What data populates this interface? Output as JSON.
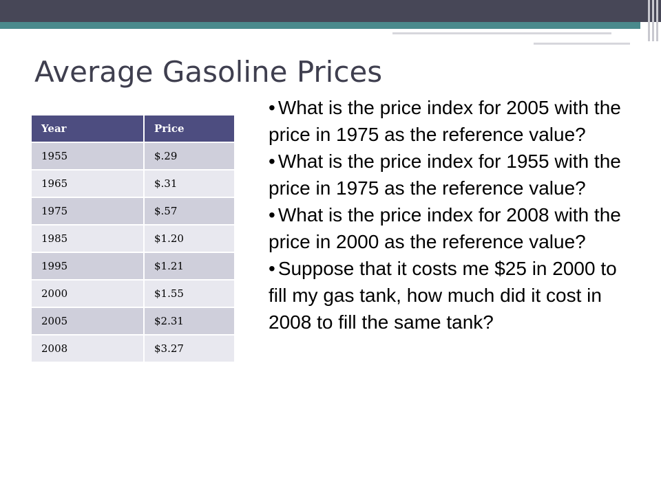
{
  "slide": {
    "title": "Average Gasoline Prices"
  },
  "table": {
    "headers": [
      "Year",
      "Price"
    ],
    "rows": [
      [
        "1955",
        "$.29"
      ],
      [
        "1965",
        "$.31"
      ],
      [
        "1975",
        "$.57"
      ],
      [
        "1985",
        "$1.20"
      ],
      [
        "1995",
        "$1.21"
      ],
      [
        "2000",
        "$1.55"
      ],
      [
        "2005",
        "$2.31"
      ],
      [
        "2008",
        "$3.27"
      ]
    ]
  },
  "questions": [
    "What is the price index for 2005 with the price in 1975 as the reference value?",
    "What is the price index for 1955 with the price in 1975 as the reference value?",
    "What is the price index for 2008 with the price in 2000 as the reference value?",
    "Suppose that it costs me $25 in 2000 to fill my gas tank, how much did it cost in 2008 to fill the same tank?"
  ],
  "colors": {
    "header_bar": "#474757",
    "accent_bar": "#4a8a8c",
    "table_header": "#4d4d80",
    "row_odd": "#cfcfdb",
    "row_even": "#e8e8ef",
    "title_text": "#3f3f4f"
  }
}
